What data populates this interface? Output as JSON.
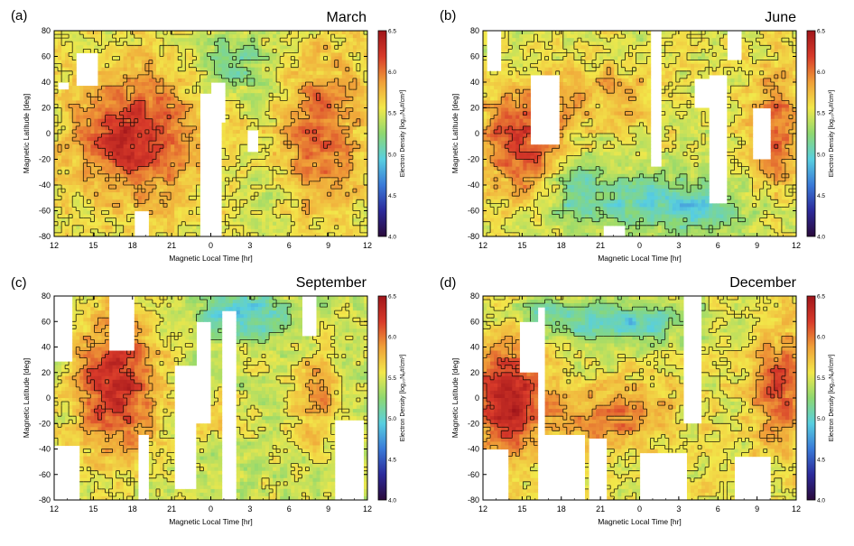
{
  "chart_data": [
    {
      "type": "heatmap",
      "panel_label": "(a)",
      "title": "March",
      "xlabel": "Magnetic Local Time [hr]",
      "ylabel": "Magnetic Latitude [deg]",
      "x_ticks": [
        "12",
        "15",
        "18",
        "21",
        "0",
        "3",
        "6",
        "9",
        "12"
      ],
      "y_ticks": [
        80,
        60,
        40,
        20,
        0,
        -20,
        -40,
        -60,
        -80
      ],
      "ylim": [
        -80,
        80
      ],
      "colorbar": {
        "label": "Electron Density [log₁₀Nₑ#/cm³]",
        "range": [
          4.0,
          6.5
        ],
        "ticks": [
          "6.5",
          "6.0",
          "5.5",
          "5.0",
          "4.5",
          "4.0"
        ]
      }
    },
    {
      "type": "heatmap",
      "panel_label": "(b)",
      "title": "June",
      "xlabel": "Magnetic Local Time [hr]",
      "ylabel": "Magnetic Latitude [deg]",
      "x_ticks": [
        "12",
        "15",
        "18",
        "21",
        "0",
        "3",
        "6",
        "9",
        "12"
      ],
      "y_ticks": [
        80,
        60,
        40,
        20,
        0,
        -20,
        -40,
        -60,
        -80
      ],
      "ylim": [
        -80,
        80
      ],
      "colorbar": {
        "label": "Electron Density [log₁₀Nₑ#/cm³]",
        "range": [
          4.0,
          6.5
        ],
        "ticks": [
          "6.5",
          "6.0",
          "5.5",
          "5.0",
          "4.5",
          "4.0"
        ]
      }
    },
    {
      "type": "heatmap",
      "panel_label": "(c)",
      "title": "September",
      "xlabel": "Magnetic Local Time [hr]",
      "ylabel": "Magnetic Latitude [deg]",
      "x_ticks": [
        "12",
        "15",
        "18",
        "21",
        "0",
        "3",
        "6",
        "9",
        "12"
      ],
      "y_ticks": [
        80,
        60,
        40,
        20,
        0,
        -20,
        -40,
        -60,
        -80
      ],
      "ylim": [
        -80,
        80
      ],
      "colorbar": {
        "label": "Electron Density [log₁₀Nₑ#/cm³]",
        "range": [
          4.0,
          6.5
        ],
        "ticks": [
          "6.5",
          "6.0",
          "5.5",
          "5.0",
          "4.5",
          "4.0"
        ]
      }
    },
    {
      "type": "heatmap",
      "panel_label": "(d)",
      "title": "December",
      "xlabel": "Magnetic Local Time [hr]",
      "ylabel": "Magnetic Latitude [deg]",
      "x_ticks": [
        "12",
        "15",
        "18",
        "21",
        "0",
        "3",
        "6",
        "9",
        "12"
      ],
      "y_ticks": [
        80,
        60,
        40,
        20,
        0,
        -20,
        -40,
        -60,
        -80
      ],
      "ylim": [
        -80,
        80
      ],
      "colorbar": {
        "label": "Electron Density [log₁₀Nₑ#/cm³]",
        "range": [
          4.0,
          6.5
        ],
        "ticks": [
          "6.5",
          "6.0",
          "5.5",
          "5.0",
          "4.5",
          "4.0"
        ]
      }
    }
  ],
  "colors": {
    "scale": [
      "#2a0a3a",
      "#2c2a9a",
      "#3a7ad8",
      "#58cfe0",
      "#8ed870",
      "#f2e84a",
      "#f0a038",
      "#d83a2a",
      "#a0151a"
    ],
    "no_data": "#ffffff",
    "contour": "#000000"
  }
}
